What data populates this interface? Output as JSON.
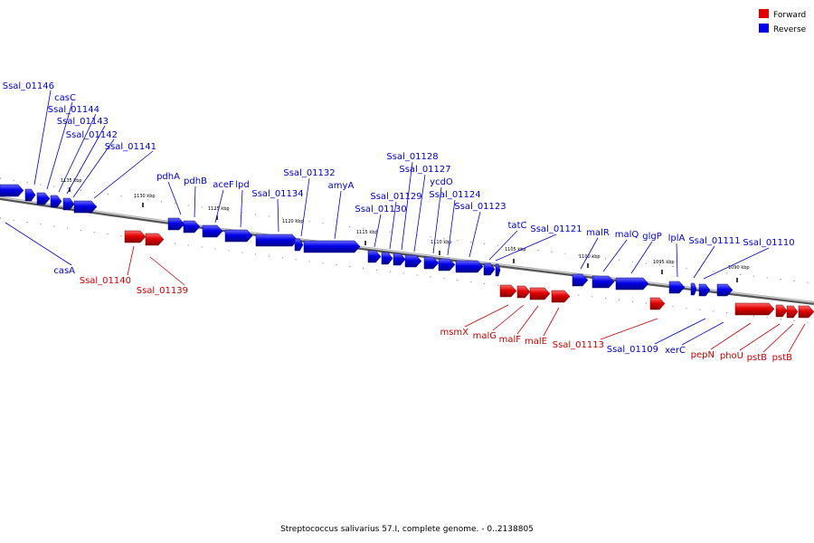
{
  "legend": [
    {
      "label": "Forward",
      "color": "#e00000"
    },
    {
      "label": "Reverse",
      "color": "#0000e8"
    }
  ],
  "caption": "Streptococcus salivarius 57.I, complete genome. - 0..2138805",
  "colors": {
    "forward": "#e00000",
    "reverse": "#0000e8",
    "forward_label": "#cc0000",
    "reverse_label": "#0000cc",
    "backbone": "#999999"
  },
  "ticks": [
    {
      "label": "1135 kbp"
    },
    {
      "label": "1130 kbp"
    },
    {
      "label": "1125 kbp"
    },
    {
      "label": "1120 kbp"
    },
    {
      "label": "1115 kbp"
    },
    {
      "label": "1110 kbp"
    },
    {
      "label": "1105 kbp"
    },
    {
      "label": "1100 kbp"
    },
    {
      "label": "1095 kbp"
    },
    {
      "label": "1090 kbp"
    }
  ],
  "genes": [
    {
      "name": "Ssal_01146",
      "strand": "reverse"
    },
    {
      "name": "casC",
      "strand": "reverse"
    },
    {
      "name": "Ssal_01144",
      "strand": "reverse"
    },
    {
      "name": "Ssal_01143",
      "strand": "reverse"
    },
    {
      "name": "Ssal_01142",
      "strand": "reverse"
    },
    {
      "name": "Ssal_01141",
      "strand": "reverse"
    },
    {
      "name": "casA",
      "strand": "reverse"
    },
    {
      "name": "Ssal_01140",
      "strand": "forward"
    },
    {
      "name": "Ssal_01139",
      "strand": "forward"
    },
    {
      "name": "pdhA",
      "strand": "reverse"
    },
    {
      "name": "pdhB",
      "strand": "reverse"
    },
    {
      "name": "aceF",
      "strand": "reverse"
    },
    {
      "name": "lpd",
      "strand": "reverse"
    },
    {
      "name": "Ssal_01134",
      "strand": "reverse"
    },
    {
      "name": "Ssal_01132",
      "strand": "reverse"
    },
    {
      "name": "amyA",
      "strand": "reverse"
    },
    {
      "name": "Ssal_01130",
      "strand": "reverse"
    },
    {
      "name": "Ssal_01129",
      "strand": "reverse"
    },
    {
      "name": "Ssal_01128",
      "strand": "reverse"
    },
    {
      "name": "Ssal_01127",
      "strand": "reverse"
    },
    {
      "name": "ycdO",
      "strand": "reverse"
    },
    {
      "name": "Ssal_01124",
      "strand": "reverse"
    },
    {
      "name": "Ssal_01123",
      "strand": "reverse"
    },
    {
      "name": "tatC",
      "strand": "reverse"
    },
    {
      "name": "Ssal_01121",
      "strand": "reverse"
    },
    {
      "name": "malR",
      "strand": "reverse"
    },
    {
      "name": "malQ",
      "strand": "reverse"
    },
    {
      "name": "glgP",
      "strand": "reverse"
    },
    {
      "name": "lplA",
      "strand": "reverse"
    },
    {
      "name": "Ssal_01111",
      "strand": "reverse"
    },
    {
      "name": "Ssal_01110",
      "strand": "reverse"
    },
    {
      "name": "msmX",
      "strand": "forward"
    },
    {
      "name": "malG",
      "strand": "forward"
    },
    {
      "name": "malF",
      "strand": "forward"
    },
    {
      "name": "malE",
      "strand": "forward"
    },
    {
      "name": "Ssal_01113",
      "strand": "forward"
    },
    {
      "name": "Ssal_01109",
      "strand": "reverse"
    },
    {
      "name": "xerC",
      "strand": "reverse"
    },
    {
      "name": "pepN",
      "strand": "forward"
    },
    {
      "name": "phoU",
      "strand": "forward"
    },
    {
      "name": "pstB",
      "strand": "forward"
    },
    {
      "name": "pstB",
      "strand": "forward"
    }
  ]
}
